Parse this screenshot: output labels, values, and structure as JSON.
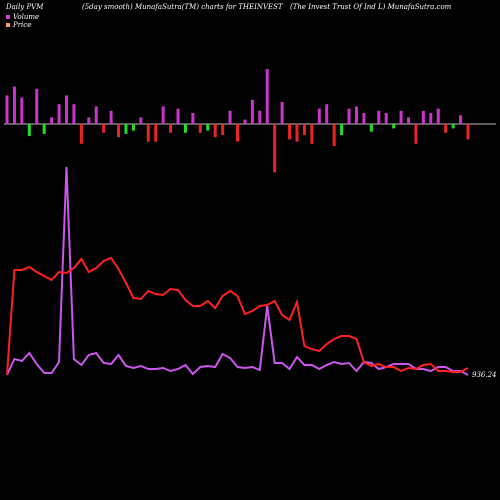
{
  "header": {
    "left": "Daily PVM",
    "mid": "(5day smooth) MunafaSutra(TM) charts for THEINVEST",
    "right": "(The   Invest Trust Of Ind L) MunafaSutra.com"
  },
  "legend": [
    {
      "label": "Volume",
      "color": "#cc44cc"
    },
    {
      "label": "Price",
      "color": "#ff9966"
    }
  ],
  "colors": {
    "price_line": "#ff2020",
    "volume_line": "#cc55ee",
    "bar_up": "#cc33cc",
    "bar_up_alt": "#22dd22",
    "bar_down": "#ee2222",
    "axis": "#bbbbbb"
  },
  "chart_data": {
    "type": "line",
    "last_price_label": "936.24",
    "price_series": [
      375,
      270,
      270,
      267,
      272,
      276,
      280,
      272,
      273,
      268,
      259,
      272,
      268,
      261,
      258,
      269,
      283,
      298,
      299,
      291,
      294,
      295,
      289,
      290,
      300,
      306,
      306,
      301,
      308,
      296,
      291,
      296,
      314,
      311,
      306,
      305,
      301,
      315,
      320,
      302,
      346,
      349,
      351,
      344,
      339,
      336,
      336,
      339,
      362,
      366,
      364,
      367,
      367,
      371,
      368,
      369,
      365,
      364,
      371,
      371,
      372,
      372,
      368
    ],
    "volume_series": [
      375,
      359,
      361,
      353,
      364,
      373,
      373,
      362,
      167,
      359,
      365,
      355,
      353,
      363,
      364,
      355,
      366,
      368,
      366,
      369,
      369,
      368,
      371,
      369,
      365,
      374,
      367,
      366,
      367,
      354,
      358,
      367,
      368,
      367,
      370,
      306,
      363,
      363,
      369,
      357,
      365,
      365,
      369,
      365,
      362,
      364,
      363,
      371,
      362,
      363,
      369,
      367,
      364,
      364,
      364,
      369,
      369,
      371,
      367,
      367,
      371,
      371,
      375
    ],
    "volume_bars": {
      "direction": [
        "up",
        "up",
        "up",
        "up",
        "up",
        "up",
        "up",
        "up",
        "up",
        "up",
        "down",
        "up",
        "up",
        "down",
        "up",
        "down",
        "up",
        "up",
        "up",
        "down",
        "down",
        "up",
        "down",
        "up",
        "up",
        "up",
        "down",
        "up",
        "down",
        "down",
        "up",
        "down",
        "up",
        "up",
        "up",
        "up",
        "down",
        "up",
        "down",
        "down",
        "down",
        "down",
        "up",
        "up",
        "down",
        "up",
        "up",
        "up",
        "up",
        "up",
        "up",
        "up",
        "up",
        "up",
        "up",
        "down",
        "up",
        "up",
        "up",
        "down",
        "up",
        "up",
        "down"
      ],
      "magnitude": [
        13,
        17,
        12,
        11,
        16,
        9,
        3,
        9,
        13,
        9,
        9,
        3,
        8,
        4,
        6,
        6,
        9,
        6,
        3,
        8,
        8,
        8,
        4,
        7,
        8,
        5,
        4,
        6,
        6,
        5,
        6,
        8,
        2,
        11,
        6,
        25,
        22,
        10,
        7,
        8,
        5,
        9,
        7,
        9,
        10,
        10,
        7,
        8,
        5,
        7,
        6,
        5,
        4,
        6,
        3,
        9,
        6,
        5,
        7,
        4,
        4,
        4,
        7
      ]
    }
  }
}
